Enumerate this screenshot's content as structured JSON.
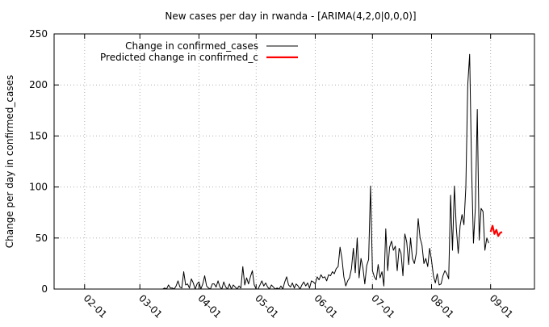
{
  "chart_data": {
    "type": "line",
    "title": "New cases per day in rwanda -  [ARIMA(4,2,0|0,0,0)]",
    "xlabel": "",
    "ylabel": "Change per day in confirmed_cases",
    "ylim": [
      0,
      250
    ],
    "yticks": [
      0,
      50,
      100,
      150,
      200,
      250
    ],
    "xlim": [
      "2020-01-16",
      "2020-09-24"
    ],
    "xticks": [
      {
        "label": "02-01",
        "date": "2020-02-01"
      },
      {
        "label": "03-01",
        "date": "2020-03-01"
      },
      {
        "label": "04-01",
        "date": "2020-04-01"
      },
      {
        "label": "05-01",
        "date": "2020-05-01"
      },
      {
        "label": "06-01",
        "date": "2020-06-01"
      },
      {
        "label": "07-01",
        "date": "2020-07-01"
      },
      {
        "label": "08-01",
        "date": "2020-08-01"
      },
      {
        "label": "09-01",
        "date": "2020-09-01"
      }
    ],
    "grid": true,
    "legend_position": "top-left",
    "series": [
      {
        "name": "Change in confirmed_cases",
        "color": "#000000",
        "points": [
          [
            "2020-01-22",
            0
          ],
          [
            "2020-03-13",
            0
          ],
          [
            "2020-03-14",
            1
          ],
          [
            "2020-03-15",
            0
          ],
          [
            "2020-03-16",
            4
          ],
          [
            "2020-03-17",
            1
          ],
          [
            "2020-03-18",
            1
          ],
          [
            "2020-03-19",
            0
          ],
          [
            "2020-03-20",
            3
          ],
          [
            "2020-03-21",
            8
          ],
          [
            "2020-03-22",
            2
          ],
          [
            "2020-03-23",
            1
          ],
          [
            "2020-03-24",
            17
          ],
          [
            "2020-03-25",
            4
          ],
          [
            "2020-03-26",
            5
          ],
          [
            "2020-03-27",
            1
          ],
          [
            "2020-03-28",
            10
          ],
          [
            "2020-03-29",
            6
          ],
          [
            "2020-03-30",
            0
          ],
          [
            "2020-03-31",
            5
          ],
          [
            "2020-04-01",
            7
          ],
          [
            "2020-04-02",
            0
          ],
          [
            "2020-04-03",
            5
          ],
          [
            "2020-04-04",
            13
          ],
          [
            "2020-04-05",
            3
          ],
          [
            "2020-04-06",
            1
          ],
          [
            "2020-04-07",
            0
          ],
          [
            "2020-04-08",
            5
          ],
          [
            "2020-04-09",
            5
          ],
          [
            "2020-04-10",
            2
          ],
          [
            "2020-04-11",
            8
          ],
          [
            "2020-04-12",
            2
          ],
          [
            "2020-04-13",
            0
          ],
          [
            "2020-04-14",
            7
          ],
          [
            "2020-04-15",
            2
          ],
          [
            "2020-04-16",
            0
          ],
          [
            "2020-04-17",
            5
          ],
          [
            "2020-04-18",
            0
          ],
          [
            "2020-04-19",
            4
          ],
          [
            "2020-04-20",
            2
          ],
          [
            "2020-04-21",
            0
          ],
          [
            "2020-04-22",
            3
          ],
          [
            "2020-04-23",
            1
          ],
          [
            "2020-04-24",
            22
          ],
          [
            "2020-04-25",
            4
          ],
          [
            "2020-04-26",
            11
          ],
          [
            "2020-04-27",
            5
          ],
          [
            "2020-04-28",
            12
          ],
          [
            "2020-04-29",
            18
          ],
          [
            "2020-04-30",
            4
          ],
          [
            "2020-05-01",
            0
          ],
          [
            "2020-05-02",
            0
          ],
          [
            "2020-05-03",
            4
          ],
          [
            "2020-05-04",
            8
          ],
          [
            "2020-05-05",
            3
          ],
          [
            "2020-05-06",
            6
          ],
          [
            "2020-05-07",
            2
          ],
          [
            "2020-05-08",
            0
          ],
          [
            "2020-05-09",
            4
          ],
          [
            "2020-05-10",
            2
          ],
          [
            "2020-05-11",
            0
          ],
          [
            "2020-05-12",
            1
          ],
          [
            "2020-05-13",
            0
          ],
          [
            "2020-05-14",
            3
          ],
          [
            "2020-05-15",
            0
          ],
          [
            "2020-05-16",
            7
          ],
          [
            "2020-05-17",
            12
          ],
          [
            "2020-05-18",
            4
          ],
          [
            "2020-05-19",
            2
          ],
          [
            "2020-05-20",
            6
          ],
          [
            "2020-05-21",
            1
          ],
          [
            "2020-05-22",
            5
          ],
          [
            "2020-05-23",
            3
          ],
          [
            "2020-05-24",
            0
          ],
          [
            "2020-05-25",
            4
          ],
          [
            "2020-05-26",
            7
          ],
          [
            "2020-05-27",
            3
          ],
          [
            "2020-05-28",
            6
          ],
          [
            "2020-05-29",
            1
          ],
          [
            "2020-05-30",
            8
          ],
          [
            "2020-05-31",
            7
          ],
          [
            "2020-06-01",
            5
          ],
          [
            "2020-06-02",
            12
          ],
          [
            "2020-06-03",
            9
          ],
          [
            "2020-06-04",
            14
          ],
          [
            "2020-06-05",
            11
          ],
          [
            "2020-06-06",
            12
          ],
          [
            "2020-06-07",
            8
          ],
          [
            "2020-06-08",
            14
          ],
          [
            "2020-06-09",
            13
          ],
          [
            "2020-06-10",
            17
          ],
          [
            "2020-06-11",
            15
          ],
          [
            "2020-06-12",
            20
          ],
          [
            "2020-06-13",
            22
          ],
          [
            "2020-06-14",
            41
          ],
          [
            "2020-06-15",
            30
          ],
          [
            "2020-06-16",
            12
          ],
          [
            "2020-06-17",
            3
          ],
          [
            "2020-06-18",
            8
          ],
          [
            "2020-06-19",
            11
          ],
          [
            "2020-06-20",
            20
          ],
          [
            "2020-06-21",
            40
          ],
          [
            "2020-06-22",
            16
          ],
          [
            "2020-06-23",
            50
          ],
          [
            "2020-06-24",
            11
          ],
          [
            "2020-06-25",
            30
          ],
          [
            "2020-06-26",
            21
          ],
          [
            "2020-06-27",
            5
          ],
          [
            "2020-06-28",
            23
          ],
          [
            "2020-06-29",
            29
          ],
          [
            "2020-06-30",
            101
          ],
          [
            "2020-07-01",
            18
          ],
          [
            "2020-07-02",
            12
          ],
          [
            "2020-07-03",
            9
          ],
          [
            "2020-07-04",
            24
          ],
          [
            "2020-07-05",
            11
          ],
          [
            "2020-07-06",
            17
          ],
          [
            "2020-07-07",
            3
          ],
          [
            "2020-07-08",
            59
          ],
          [
            "2020-07-09",
            18
          ],
          [
            "2020-07-10",
            41
          ],
          [
            "2020-07-11",
            47
          ],
          [
            "2020-07-12",
            38
          ],
          [
            "2020-07-13",
            42
          ],
          [
            "2020-07-14",
            18
          ],
          [
            "2020-07-15",
            40
          ],
          [
            "2020-07-16",
            35
          ],
          [
            "2020-07-17",
            13
          ],
          [
            "2020-07-18",
            54
          ],
          [
            "2020-07-19",
            46
          ],
          [
            "2020-07-20",
            24
          ],
          [
            "2020-07-21",
            50
          ],
          [
            "2020-07-22",
            30
          ],
          [
            "2020-07-23",
            25
          ],
          [
            "2020-07-24",
            35
          ],
          [
            "2020-07-25",
            69
          ],
          [
            "2020-07-26",
            50
          ],
          [
            "2020-07-27",
            43
          ],
          [
            "2020-07-28",
            25
          ],
          [
            "2020-07-29",
            30
          ],
          [
            "2020-07-30",
            22
          ],
          [
            "2020-07-31",
            40
          ],
          [
            "2020-08-01",
            28
          ],
          [
            "2020-08-02",
            13
          ],
          [
            "2020-08-03",
            6
          ],
          [
            "2020-08-04",
            15
          ],
          [
            "2020-08-05",
            4
          ],
          [
            "2020-08-06",
            5
          ],
          [
            "2020-08-07",
            13
          ],
          [
            "2020-08-08",
            18
          ],
          [
            "2020-08-09",
            15
          ],
          [
            "2020-08-10",
            10
          ],
          [
            "2020-08-11",
            92
          ],
          [
            "2020-08-12",
            38
          ],
          [
            "2020-08-13",
            101
          ],
          [
            "2020-08-14",
            60
          ],
          [
            "2020-08-15",
            35
          ],
          [
            "2020-08-16",
            62
          ],
          [
            "2020-08-17",
            73
          ],
          [
            "2020-08-18",
            63
          ],
          [
            "2020-08-19",
            100
          ],
          [
            "2020-08-20",
            200
          ],
          [
            "2020-08-21",
            230
          ],
          [
            "2020-08-22",
            120
          ],
          [
            "2020-08-23",
            45
          ],
          [
            "2020-08-24",
            80
          ],
          [
            "2020-08-25",
            176
          ],
          [
            "2020-08-26",
            48
          ],
          [
            "2020-08-27",
            79
          ],
          [
            "2020-08-28",
            76
          ],
          [
            "2020-08-29",
            38
          ],
          [
            "2020-08-30",
            50
          ],
          [
            "2020-08-31",
            45
          ]
        ]
      },
      {
        "name": "Predicted change in confirmed_c",
        "color": "#ff0000",
        "points": [
          [
            "2020-09-01",
            56
          ],
          [
            "2020-09-02",
            62
          ],
          [
            "2020-09-03",
            54
          ],
          [
            "2020-09-04",
            58
          ],
          [
            "2020-09-05",
            52
          ],
          [
            "2020-09-06",
            55
          ],
          [
            "2020-09-07",
            56
          ]
        ]
      }
    ]
  }
}
